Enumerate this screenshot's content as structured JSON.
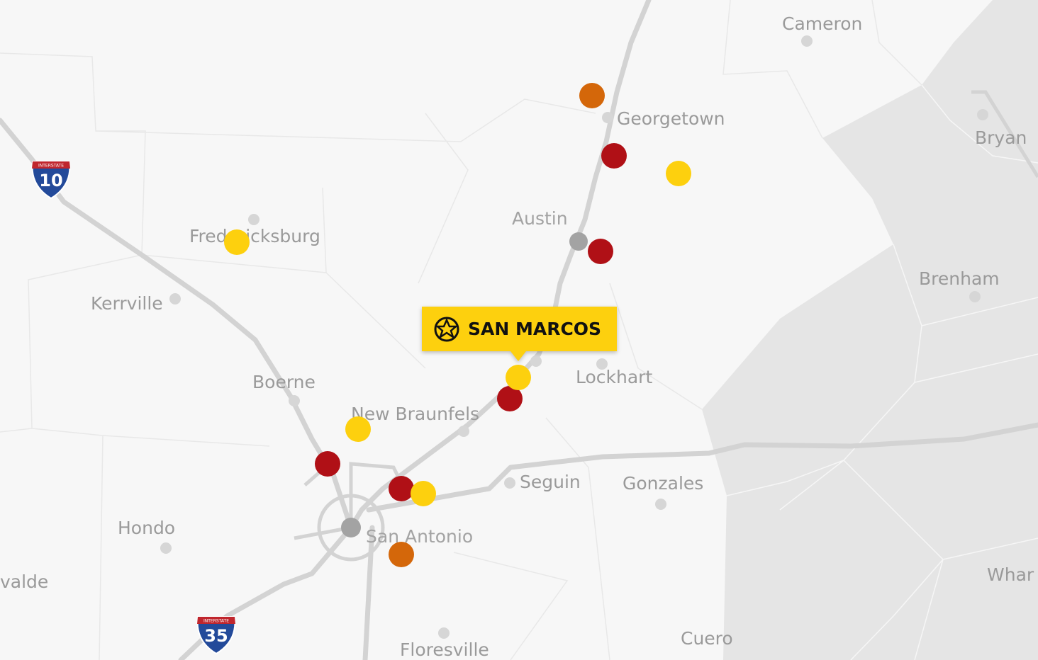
{
  "cities": [
    "Cameron",
    "Georgetown",
    "Bryan",
    "Austin",
    "Fredericksburg",
    "Kerrville",
    "Brenham",
    "Lockhart",
    "Boerne",
    "New Braunfels",
    "Seguin",
    "Gonzales",
    "San Antonio",
    "Hondo",
    "valde",
    "Floresville",
    "Cuero",
    "Whar"
  ],
  "shields": [
    {
      "caption": "INTERSTATE",
      "number": "10"
    },
    {
      "caption": "INTERSTATE",
      "number": "35"
    }
  ],
  "callout": {
    "label": "SAN MARCOS"
  }
}
